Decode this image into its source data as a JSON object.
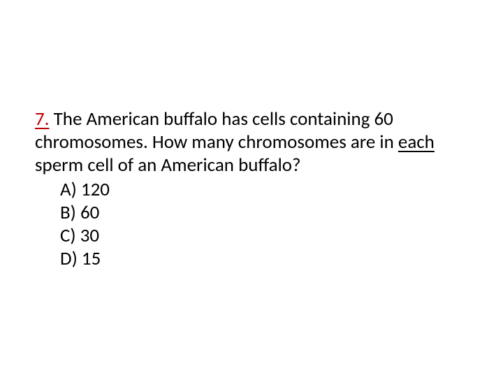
{
  "question": {
    "number": "7.",
    "text_part1": " The American buffalo has cells containing 60 chromosomes. How many chromosomes are in ",
    "text_underlined": "each",
    "text_part2": " sperm cell of an American buffalo?"
  },
  "options": [
    {
      "label": "A) 120"
    },
    {
      "label": "B) 60"
    },
    {
      "label": "C) 30"
    },
    {
      "label": "D) 15"
    }
  ],
  "colors": {
    "number_color": "#c00000",
    "text_color": "#000000",
    "background": "#ffffff"
  },
  "typography": {
    "font_family": "Calibri",
    "font_size_pt": 20
  }
}
